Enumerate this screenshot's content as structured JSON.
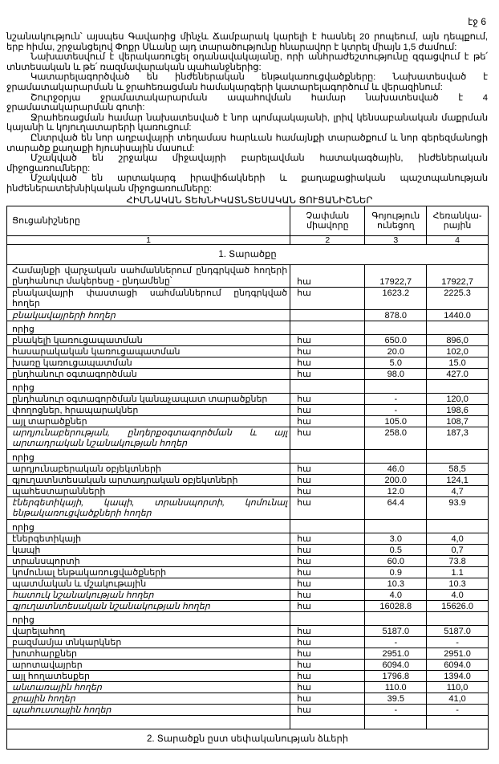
{
  "page_number": "էջ 6",
  "paragraphs": [
    "նշանակություն՝ այսպես Գավառից մինչև Ճամբարակ կարելի է հասնել 20 րոպեում, այն դեպքում, երբ հիմա, շրջանցելով Փոքր Սևանը այդ տարածությունը հնարավոր է կտրել միայն 1,5 ժամում:",
    "Նախատեսվում է վերակառուցել օդանավակայանը, որի անհրաժեշտությունը զգացվում է թե՛ տնտեսական և թե՛ ռազմավարական պահանջներից:",
    "Կատարելագործված են ինժեներական ենթակառուցվածքները: Նախատեսված է ջրամատակարարման և ջրահեռացման համակարգերի կատարելագործում և վերազինում:",
    "Շուրջօրյա ջրամատակարարման ապահովման համար նախատեսված է 4 ջրամատակարարման գոտի:",
    "Ջրահեռացման համար նախատեսված է նոր պոմպակայանի, լրիվ կենսաբանական մաքրման կայանի և կոյուղատարերի կառուցում:",
    "Ընտրված են նոր աղբավայրի տեղամաս հարևան համայնքի տարածքում և նոր գերեզմանոցի տարածք քաղաքի հյուսիսային մասում:",
    "Մշակված են շրջակա միջավայրի բարելավման հատակագծային, ինժեներական միջոցառումները:",
    "Մշակված են արտակարգ իրավիճակների և քաղաքացիական պաշտպանության ինժեներատեխնիկական միջոցառումները:"
  ],
  "table": {
    "title": "ՀԻՄՆԱԿԱՆ ՏԵԽՆԻԿԱՏՆՏԵՍԱԿԱՆ ՑՈՒՑԱՆԻՇՆԵՐ",
    "headers": [
      "Ցուցանիշները",
      "Չափման միավորը",
      "Գոյություն ունեցող",
      "Հեռանկա-րային"
    ],
    "column_numbers": [
      "1",
      "2",
      "3",
      "4"
    ],
    "section_1": "1. Տարածքը",
    "rows": [
      {
        "label": "Համայնքի վարչական սահմաններում ընդգրկված հողերի ընդհանուր մակերեսը - ընդամենը՝",
        "unit": "հա",
        "existing": "17922,7",
        "projected": "17922,7",
        "tall": true
      },
      {
        "label": "բնակավայրի փաստացի սահմաններում ընդգրկված հողեր",
        "unit": "հա",
        "existing": "1623.2",
        "projected": "2225.3",
        "tall": true
      },
      {
        "label": "բնակավայրերի հողեր",
        "unit": "",
        "existing": "878.0",
        "projected": "1440.0",
        "emphasis": true
      },
      {
        "label": "որից",
        "unit": "",
        "existing": "",
        "projected": "",
        "sub": true
      },
      {
        "label": "բնակելի կառուցապատման",
        "unit": "հա",
        "existing": "650.0",
        "projected": "896,0"
      },
      {
        "label": "հասարակական կառուցապատման",
        "unit": "հա",
        "existing": "20.0",
        "projected": "102,0"
      },
      {
        "label": "խառը կառուցապատման",
        "unit": "հա",
        "existing": "5.0",
        "projected": "15.0"
      },
      {
        "label": "ընդհանուր օգտագործման",
        "unit": "հա",
        "existing": "98.0",
        "projected": "427.0"
      },
      {
        "label": "որից",
        "unit": "",
        "existing": "",
        "projected": "",
        "sub": true
      },
      {
        "label": "ընդհանուր օգտագործման կանաչապատ տարածքներ",
        "unit": "հա",
        "existing": "-",
        "projected": "120,0"
      },
      {
        "label": "փողոցներ, հրապարակներ",
        "unit": "հա",
        "existing": "-",
        "projected": "198,6"
      },
      {
        "label": "այլ տարածքներ",
        "unit": "հա",
        "existing": "105.0",
        "projected": "108,7"
      },
      {
        "label": "արդյունաբերության, ընդերքօգտագործման և այլ արտադրական նշանակության հողեր",
        "unit": "հա",
        "existing": "258.0",
        "projected": "187,3",
        "tall": true,
        "emphasis": true
      },
      {
        "label": "որից",
        "unit": "",
        "existing": "",
        "projected": "",
        "sub": true
      },
      {
        "label": "արդյունաբերական օբյեկտների",
        "unit": "հա",
        "existing": "46.0",
        "projected": "58,5"
      },
      {
        "label": "գյուղատնտեսական արտադրական օբյեկտների",
        "unit": "հա",
        "existing": "200.0",
        "projected": "124,1"
      },
      {
        "label": "պահեստարանների",
        "unit": "հա",
        "existing": "12.0",
        "projected": "4,7"
      },
      {
        "label": "էներգետիկայի, կապի, տրանսպորտի, կոմունալ ենթակառուցվածքների հողեր",
        "unit": "հա",
        "existing": "64.4",
        "projected": "93.9",
        "tall": true,
        "emphasis": true
      },
      {
        "label": "որից",
        "unit": "",
        "existing": "",
        "projected": "",
        "sub": true
      },
      {
        "label": "էներգետիկայի",
        "unit": "հա",
        "existing": "3.0",
        "projected": "4,0"
      },
      {
        "label": "կապի",
        "unit": "հա",
        "existing": "0.5",
        "projected": "0,7"
      },
      {
        "label": "տրանսպորտի",
        "unit": "հա",
        "existing": "60.0",
        "projected": "73.8"
      },
      {
        "label": "կոմունալ ենթակառուցվածքների",
        "unit": "հա",
        "existing": "0.9",
        "projected": "1.1"
      },
      {
        "label": "պատմական և մշակութային",
        "unit": "հա",
        "existing": "10.3",
        "projected": "10.3"
      },
      {
        "label": "հատուկ նշանակության հողեր",
        "unit": "հա",
        "existing": "4.0",
        "projected": "4.0",
        "emphasis": true
      },
      {
        "label": "գյուղատնտեսական նշանակության հողեր",
        "unit": "հա",
        "existing": "16028.8",
        "projected": "15626.0",
        "emphasis": true
      },
      {
        "label": "որից",
        "unit": "",
        "existing": "",
        "projected": "",
        "sub": true
      },
      {
        "label": "վարելահող",
        "unit": "հա",
        "existing": "5187.0",
        "projected": "5187.0"
      },
      {
        "label": "բազմամյա տնկարկներ",
        "unit": "հա",
        "existing": "-",
        "projected": "-"
      },
      {
        "label": "խոտհարքներ",
        "unit": "հա",
        "existing": "2951.0",
        "projected": "2951.0"
      },
      {
        "label": "արոտավայրեր",
        "unit": "հա",
        "existing": "6094.0",
        "projected": "6094.0"
      },
      {
        "label": "այլ հողատեսքեր",
        "unit": "հա",
        "existing": "1796.8",
        "projected": "1394.0"
      },
      {
        "label": "անտառային հողեր",
        "unit": "հա",
        "existing": "110.0",
        "projected": "110,0",
        "emphasis": true
      },
      {
        "label": "ջրային հողեր",
        "unit": "հա",
        "existing": "39.5",
        "projected": "41,0",
        "emphasis": true
      },
      {
        "label": "պահուստային հողեր",
        "unit": "հա",
        "existing": "-",
        "projected": "-",
        "emphasis": true
      },
      {
        "label": "",
        "unit": "",
        "existing": "",
        "projected": "",
        "sub": true
      }
    ],
    "section_2": "2. Տարածքն ըստ սեփականության ձևերի"
  }
}
